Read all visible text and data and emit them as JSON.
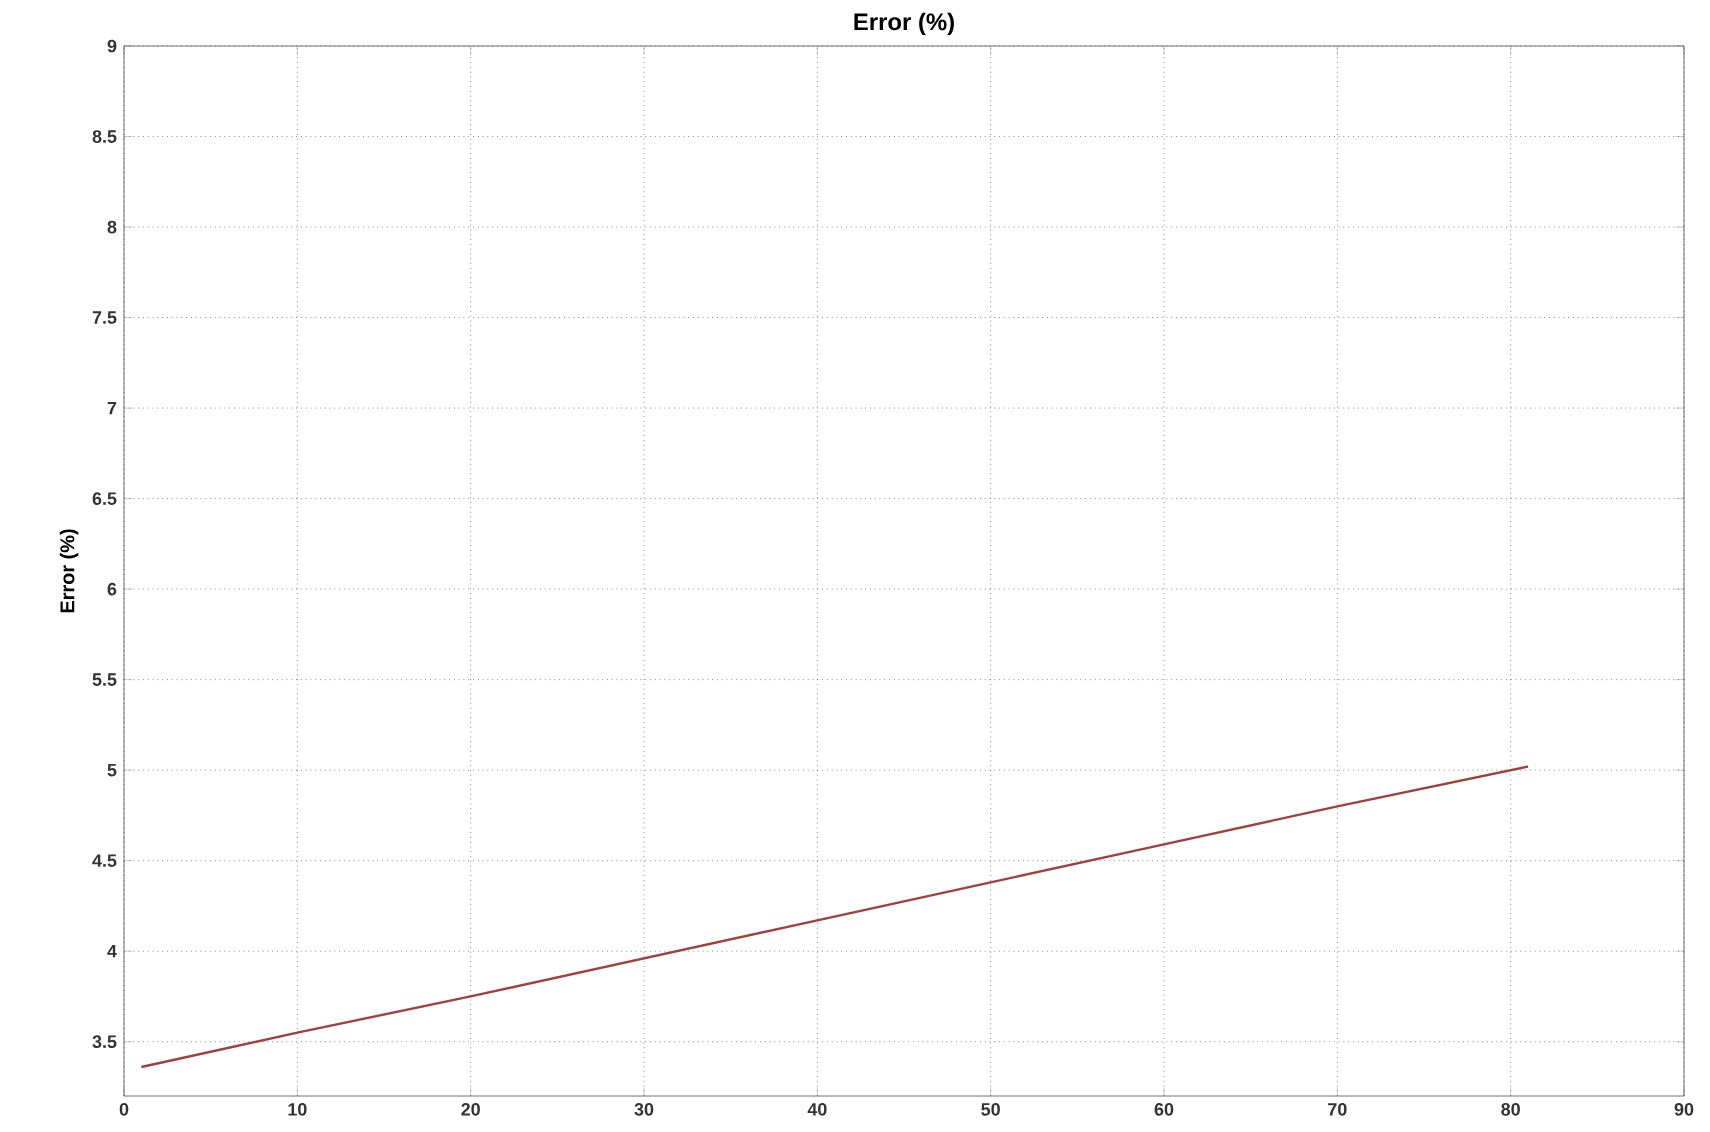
{
  "chart_data": {
    "type": "line",
    "title": "Error (%)",
    "ylabel": "Error (%)",
    "x": [
      1,
      10,
      20,
      30,
      40,
      50,
      60,
      70,
      81
    ],
    "series": [
      {
        "color": "#a0403c",
        "values": [
          3.36,
          3.55,
          3.75,
          3.96,
          4.17,
          4.38,
          4.59,
          4.8,
          5.02
        ]
      }
    ],
    "xlim": [
      0,
      90
    ],
    "xticks": [
      0,
      10,
      20,
      30,
      40,
      50,
      60,
      70,
      80,
      90
    ],
    "ylim": [
      3.2,
      9
    ],
    "yticks": [
      3.5,
      4,
      4.5,
      5,
      5.5,
      6,
      6.5,
      7,
      7.5,
      8,
      8.5,
      9
    ],
    "grid": true,
    "line_style": "solid",
    "marker": "none"
  }
}
